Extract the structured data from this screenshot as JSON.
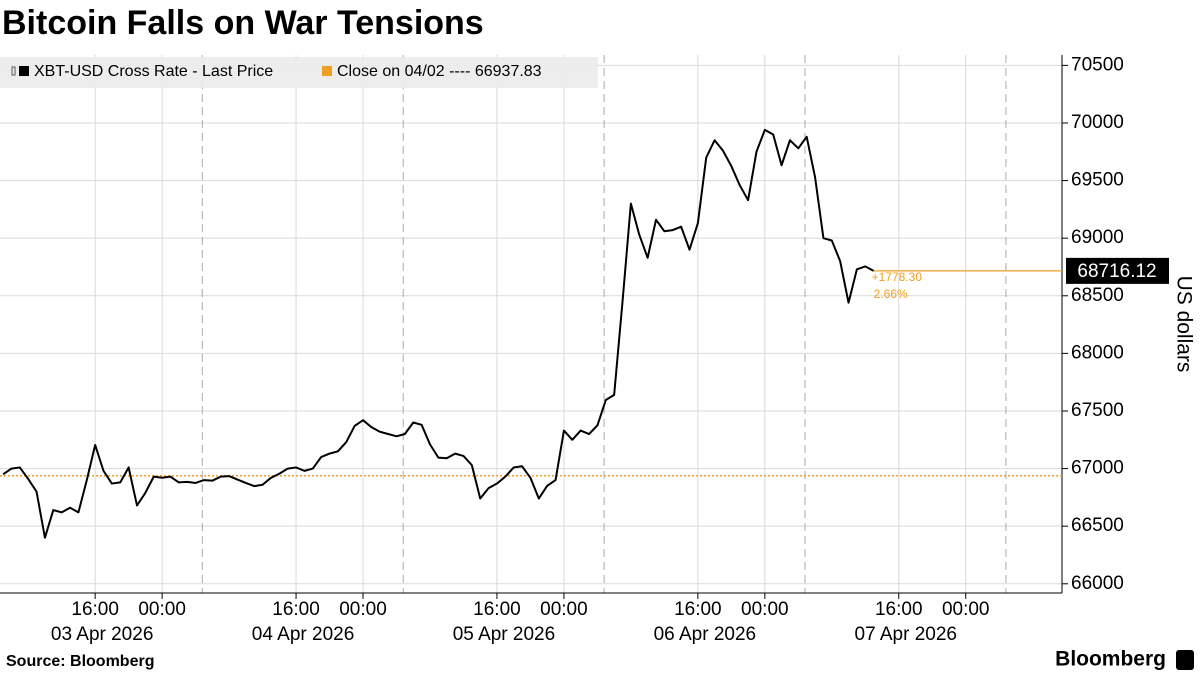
{
  "chart_data": {
    "type": "line",
    "title": "Bitcoin Falls on War Tensions",
    "y_label": "US dollars",
    "source": "Source: Bloomberg",
    "brand": "Bloomberg",
    "x": [
      "2026-04-03 05:00",
      "2026-04-03 06:00",
      "2026-04-03 07:00",
      "2026-04-03 08:00",
      "2026-04-03 09:00",
      "2026-04-03 10:00",
      "2026-04-03 11:00",
      "2026-04-03 12:00",
      "2026-04-03 13:00",
      "2026-04-03 14:00",
      "2026-04-03 15:00",
      "2026-04-03 16:00",
      "2026-04-03 17:00",
      "2026-04-03 18:00",
      "2026-04-03 19:00",
      "2026-04-03 20:00",
      "2026-04-03 21:00",
      "2026-04-03 22:00",
      "2026-04-03 23:00",
      "2026-04-04 00:00",
      "2026-04-04 01:00",
      "2026-04-04 02:00",
      "2026-04-04 03:00",
      "2026-04-04 04:00",
      "2026-04-04 05:00",
      "2026-04-04 06:00",
      "2026-04-04 07:00",
      "2026-04-04 08:00",
      "2026-04-04 09:00",
      "2026-04-04 10:00",
      "2026-04-04 11:00",
      "2026-04-04 12:00",
      "2026-04-04 13:00",
      "2026-04-04 14:00",
      "2026-04-04 15:00",
      "2026-04-04 16:00",
      "2026-04-04 17:00",
      "2026-04-04 18:00",
      "2026-04-04 19:00",
      "2026-04-04 20:00",
      "2026-04-04 21:00",
      "2026-04-04 22:00",
      "2026-04-04 23:00",
      "2026-04-05 00:00",
      "2026-04-05 01:00",
      "2026-04-05 02:00",
      "2026-04-05 03:00",
      "2026-04-05 04:00",
      "2026-04-05 05:00",
      "2026-04-05 06:00",
      "2026-04-05 07:00",
      "2026-04-05 08:00",
      "2026-04-05 09:00",
      "2026-04-05 10:00",
      "2026-04-05 11:00",
      "2026-04-05 12:00",
      "2026-04-05 13:00",
      "2026-04-05 14:00",
      "2026-04-05 15:00",
      "2026-04-05 16:00",
      "2026-04-05 17:00",
      "2026-04-05 18:00",
      "2026-04-05 19:00",
      "2026-04-05 20:00",
      "2026-04-05 21:00",
      "2026-04-05 22:00",
      "2026-04-05 23:00",
      "2026-04-06 00:00",
      "2026-04-06 01:00",
      "2026-04-06 02:00",
      "2026-04-06 03:00",
      "2026-04-06 04:00",
      "2026-04-06 05:00",
      "2026-04-06 06:00",
      "2026-04-06 07:00",
      "2026-04-06 08:00",
      "2026-04-06 09:00",
      "2026-04-06 10:00",
      "2026-04-06 11:00",
      "2026-04-06 12:00",
      "2026-04-06 13:00",
      "2026-04-06 14:00",
      "2026-04-06 15:00",
      "2026-04-06 16:00",
      "2026-04-06 17:00",
      "2026-04-06 18:00",
      "2026-04-06 19:00",
      "2026-04-06 20:00",
      "2026-04-06 21:00",
      "2026-04-06 22:00",
      "2026-04-06 23:00",
      "2026-04-07 00:00",
      "2026-04-07 01:00",
      "2026-04-07 02:00",
      "2026-04-07 03:00",
      "2026-04-07 04:00",
      "2026-04-07 05:00",
      "2026-04-07 06:00",
      "2026-04-07 07:00",
      "2026-04-07 08:00",
      "2026-04-07 09:00",
      "2026-04-07 10:00",
      "2026-04-07 11:00",
      "2026-04-07 12:00",
      "2026-04-07 13:00"
    ],
    "series": [
      {
        "name": "XBT-USD Cross Rate - Last Price",
        "color": "#000000",
        "values": [
          66950,
          67000,
          67010,
          66910,
          66800,
          66400,
          66640,
          66620,
          66660,
          66620,
          66900,
          67205,
          66980,
          66870,
          66880,
          67010,
          66680,
          66790,
          66930,
          66920,
          66930,
          66880,
          66885,
          66875,
          66900,
          66895,
          66930,
          66935,
          66905,
          66875,
          66848,
          66860,
          66920,
          66955,
          67000,
          67010,
          66980,
          67000,
          67100,
          67130,
          67150,
          67230,
          67370,
          67420,
          67360,
          67320,
          67300,
          67280,
          67300,
          67400,
          67380,
          67210,
          67095,
          67090,
          67130,
          67110,
          67030,
          66740,
          66830,
          66870,
          66930,
          67010,
          67020,
          66920,
          66740,
          66850,
          66900,
          67330,
          67250,
          67330,
          67300,
          67375,
          67595,
          67640,
          68450,
          69300,
          69030,
          68830,
          69160,
          69060,
          69070,
          69100,
          68900,
          69130,
          69700,
          69850,
          69760,
          69625,
          69460,
          69330,
          69750,
          69940,
          69900,
          69633,
          69850,
          69780,
          69880,
          69530,
          69000,
          68980,
          68800,
          68440,
          68730,
          68755,
          68716.12
        ]
      }
    ],
    "reference": {
      "name": "Close on 04/02 ----",
      "value": 66937.83,
      "color": "#f0a020"
    },
    "annotations": [
      "+1778.30",
      "2.66%"
    ],
    "xlim": [
      "2026-04-03 04:38",
      "2026-04-08 11:30"
    ],
    "xticks": [
      {
        "value": "2026-04-03 16:00",
        "label": "16:00"
      },
      {
        "value": "2026-04-04 00:00",
        "label": "00:00"
      },
      {
        "value": "2026-04-04 16:00",
        "label": "16:00"
      },
      {
        "value": "2026-04-05 00:00",
        "label": "00:00"
      },
      {
        "value": "2026-04-05 16:00",
        "label": "16:00"
      },
      {
        "value": "2026-04-06 00:00",
        "label": "00:00"
      },
      {
        "value": "2026-04-06 16:00",
        "label": "16:00"
      },
      {
        "value": "2026-04-07 00:00",
        "label": "00:00"
      },
      {
        "value": "2026-04-07 16:00",
        "label": "16:00"
      },
      {
        "value": "2026-04-08 00:00",
        "label": "00:00"
      }
    ],
    "xdate_labels": [
      {
        "value": "2026-04-03 16:00",
        "label": "03 Apr 2026"
      },
      {
        "value": "2026-04-04 16:00",
        "label": "04 Apr 2026"
      },
      {
        "value": "2026-04-05 16:00",
        "label": "05 Apr 2026"
      },
      {
        "value": "2026-04-06 16:00",
        "label": "06 Apr 2026"
      },
      {
        "value": "2026-04-07 16:00",
        "label": "07 Apr 2026"
      }
    ],
    "separators": [
      "2026-04-04 04:48",
      "2026-04-05 04:48",
      "2026-04-06 04:48",
      "2026-04-07 04:48",
      "2026-04-08 04:48"
    ],
    "ylim": [
      65920,
      70590
    ],
    "yticks": [
      66000,
      66500,
      67000,
      67500,
      68000,
      68500,
      69000,
      69500,
      70000,
      70500
    ],
    "grid": true
  }
}
